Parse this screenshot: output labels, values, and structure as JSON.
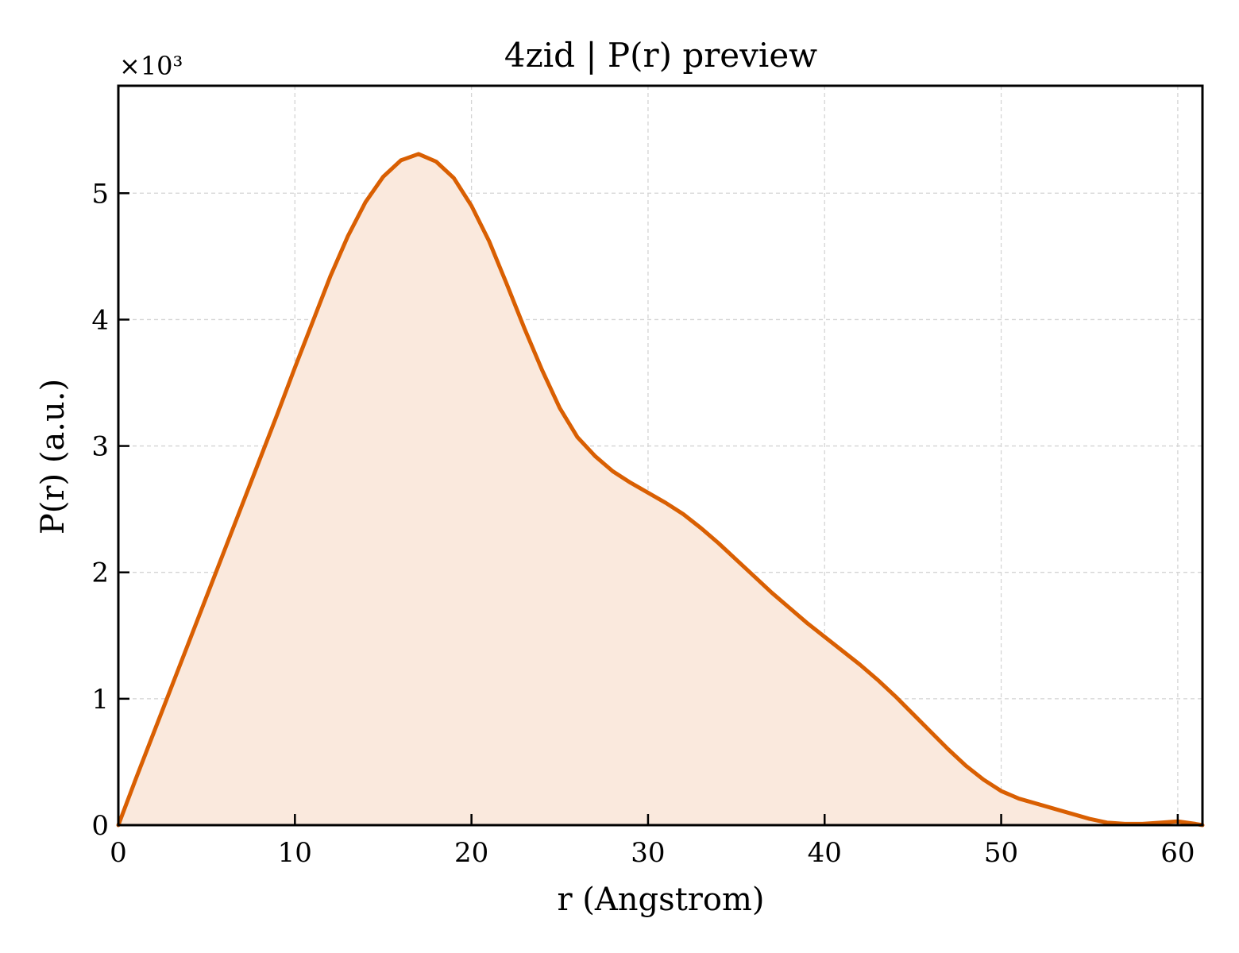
{
  "chart_data": {
    "type": "area",
    "title": "4zid | P(r) preview",
    "xlabel": "r (Angstrom)",
    "ylabel": "P(r) (a.u.)",
    "y_multiplier": "×10³",
    "xlim": [
      0,
      61.4
    ],
    "ylim": [
      0,
      5.85
    ],
    "xticks": [
      0,
      10,
      20,
      30,
      40,
      50,
      60
    ],
    "yticks": [
      0,
      1,
      2,
      3,
      4,
      5
    ],
    "grid": true,
    "legend": "none",
    "colors": {
      "line": "#d95f02",
      "fill": "#fae9dd",
      "grid": "#d4d4d4"
    },
    "series": [
      {
        "x": [
          0,
          1,
          2,
          3,
          4,
          5,
          6,
          7,
          8,
          9,
          10,
          11,
          12,
          13,
          14,
          15,
          16,
          17,
          18,
          19,
          20,
          21,
          22,
          23,
          24,
          25,
          26,
          27,
          28,
          29,
          30,
          31,
          32,
          33,
          34,
          35,
          36,
          37,
          38,
          39,
          40,
          41,
          42,
          43,
          44,
          45,
          46,
          47,
          48,
          49,
          50,
          51,
          52,
          53,
          54,
          55,
          56,
          57,
          58,
          59,
          60,
          61,
          61.4
        ],
        "y": [
          0,
          0.37,
          0.73,
          1.09,
          1.45,
          1.81,
          2.17,
          2.53,
          2.89,
          3.25,
          3.62,
          3.98,
          4.34,
          4.66,
          4.93,
          5.13,
          5.26,
          5.31,
          5.25,
          5.12,
          4.9,
          4.62,
          4.28,
          3.93,
          3.6,
          3.3,
          3.07,
          2.92,
          2.8,
          2.71,
          2.63,
          2.55,
          2.46,
          2.35,
          2.23,
          2.1,
          1.97,
          1.84,
          1.72,
          1.6,
          1.49,
          1.38,
          1.27,
          1.15,
          1.02,
          0.88,
          0.74,
          0.6,
          0.47,
          0.36,
          0.27,
          0.21,
          0.17,
          0.13,
          0.09,
          0.05,
          0.02,
          0.01,
          0.01,
          0.02,
          0.03,
          0.01,
          0.0
        ]
      }
    ]
  }
}
